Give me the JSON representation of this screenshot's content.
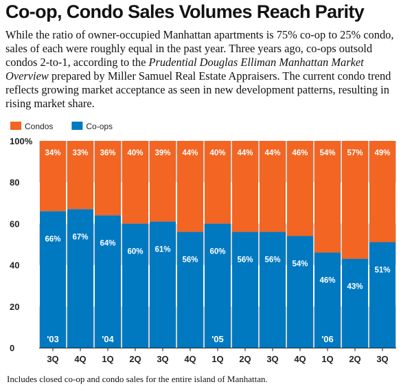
{
  "title": "Co-op, Condo Sales Volumes Reach Parity",
  "intro": {
    "part1": "While the ratio of owner-occupied Manhattan apartments is 75% co-op to 25% condo, sales of each were roughly equal in the past year. Three years ago, co-ops outsold condos 2-to-1, according to the ",
    "italic": "Prudential Douglas Elliman Manhattan Market Overview",
    "part2": " prepared by Miller Samuel Real Estate Appraisers. The current condo trend reflects growing market acceptance as seen in new development patterns, resulting in rising market share."
  },
  "footnote": "Includes closed co-op and condo sales for the entire island of Manhattan.",
  "colors": {
    "condos": "#f26522",
    "coops": "#0079c1",
    "band": "#d3d3d3",
    "text_on_bar": "#ffffff"
  },
  "chart_data": {
    "type": "bar",
    "stacked": true,
    "categories": [
      "3Q",
      "4Q",
      "1Q",
      "2Q",
      "3Q",
      "4Q",
      "1Q",
      "2Q",
      "3Q",
      "4Q",
      "1Q",
      "2Q",
      "3Q"
    ],
    "year_labels": [
      "'03",
      "",
      "'04",
      "",
      "",
      "",
      "'05",
      "",
      "",
      "",
      "'06",
      "",
      ""
    ],
    "series": [
      {
        "name": "Co-ops",
        "values": [
          66,
          67,
          64,
          60,
          61,
          56,
          60,
          56,
          56,
          54,
          46,
          43,
          51
        ]
      },
      {
        "name": "Condos",
        "values": [
          34,
          33,
          36,
          40,
          39,
          44,
          40,
          44,
          44,
          46,
          54,
          57,
          49
        ]
      }
    ],
    "value_label_suffix": "%",
    "legend_order": [
      "Condos",
      "Co-ops"
    ],
    "legend_position": "top-left",
    "ylim": [
      0,
      100
    ],
    "yticks": [
      "0",
      "20",
      "40",
      "60",
      "80",
      "100%"
    ],
    "grid": "alternating horizontal bands"
  }
}
